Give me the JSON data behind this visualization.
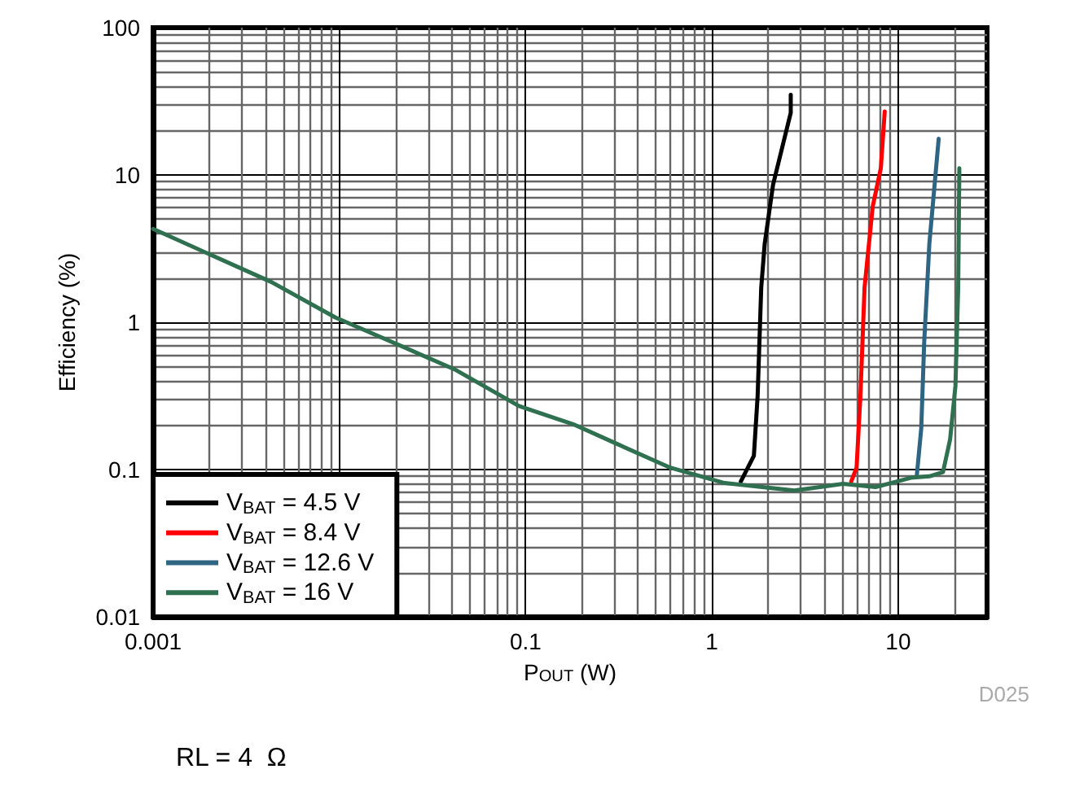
{
  "chart_data": {
    "type": "line",
    "xlabel": "P$_{OUT}$ (W)",
    "ylabel": "Efficiency (%)",
    "log": "xy",
    "grid": true,
    "legend": "bottom left",
    "marker": "none",
    "line_style": "solid",
    "xlim": [
      0.001,
      30
    ],
    "xticks": [
      0.001,
      {
        "value": 0.01,
        "label": null
      },
      0.1,
      1,
      10
    ],
    "ylim": [
      0.01,
      100
    ],
    "yticks": [
      0.01,
      0.1,
      1,
      10,
      100
    ],
    "annotations": [
      "D025",
      "RL = 4  Ω"
    ],
    "series": [
      {
        "name": "V$_{BAT}$ = 4.5 V",
        "color": "#000000",
        "x": [
          1.43,
          1.68,
          1.76,
          1.84,
          1.92,
          2.13,
          2.51,
          2.65,
          2.65
        ],
        "values": [
          0.083,
          0.124,
          0.316,
          1.72,
          3.4,
          8.6,
          20,
          26.4,
          35
        ]
      },
      {
        "name": "V$_{BAT}$ = 8.4 V",
        "color": "#ff0000",
        "x": [
          5.6,
          5.98,
          6.27,
          6.6,
          7.3,
          8.07,
          8.47
        ],
        "values": [
          0.083,
          0.103,
          0.316,
          1.72,
          6.1,
          11.1,
          27
        ]
      },
      {
        "name": "V$_{BAT}$ = 12.6 V",
        "color": "#2e6583",
        "x": [
          12.6,
          13.3,
          13.8,
          14.7,
          16.5
        ],
        "values": [
          0.092,
          0.19,
          0.74,
          3.4,
          17.6
        ]
      },
      {
        "name": "V$_{BAT}$ = 16 V",
        "color": "#2e7050",
        "x": [
          0.001,
          0.0043,
          0.0095,
          0.0414,
          0.092,
          0.18,
          0.307,
          0.598,
          1.17,
          2.77,
          5.06,
          7.55,
          11.7,
          14.7,
          17.4,
          19,
          20.3,
          21,
          21.3
        ],
        "values": [
          4.3,
          1.88,
          1.08,
          0.48,
          0.27,
          0.203,
          0.15,
          0.103,
          0.081,
          0.072,
          0.08,
          0.076,
          0.088,
          0.09,
          0.096,
          0.16,
          0.37,
          1.72,
          11.1
        ]
      }
    ]
  }
}
